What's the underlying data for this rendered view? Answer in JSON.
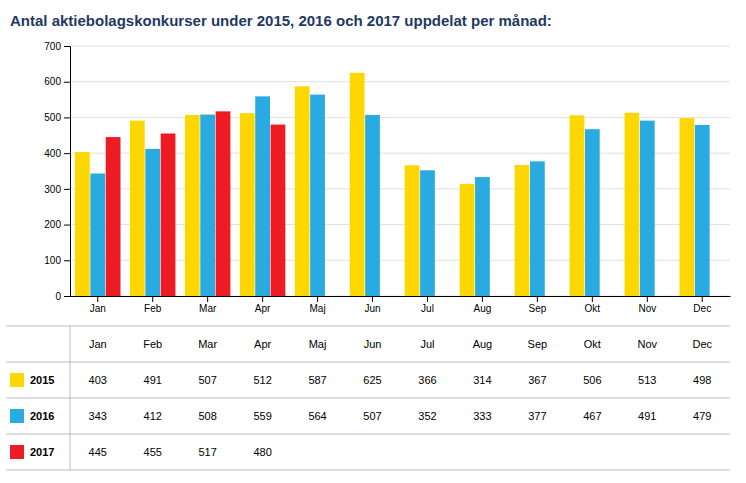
{
  "chart_data": {
    "type": "bar",
    "title": "Antal aktiebolagskonkurser under 2015, 2016 och 2017 uppdelat per månad:",
    "categories": [
      "Jan",
      "Feb",
      "Mar",
      "Apr",
      "Maj",
      "Jun",
      "Jul",
      "Aug",
      "Sep",
      "Okt",
      "Nov",
      "Dec"
    ],
    "series": [
      {
        "name": "2015",
        "color": "#FFD700",
        "values": [
          403,
          491,
          507,
          512,
          587,
          625,
          366,
          314,
          367,
          506,
          513,
          498
        ]
      },
      {
        "name": "2016",
        "color": "#29ABE2",
        "values": [
          343,
          412,
          508,
          559,
          564,
          507,
          352,
          333,
          377,
          467,
          491,
          479
        ]
      },
      {
        "name": "2017",
        "color": "#ED1C24",
        "values": [
          445,
          455,
          517,
          480,
          null,
          null,
          null,
          null,
          null,
          null,
          null,
          null
        ]
      }
    ],
    "ylim": [
      0,
      700
    ],
    "yticks": [
      0,
      100,
      200,
      300,
      400,
      500,
      600,
      700
    ],
    "grid": true,
    "data_labels": true,
    "legend": "bottom"
  }
}
